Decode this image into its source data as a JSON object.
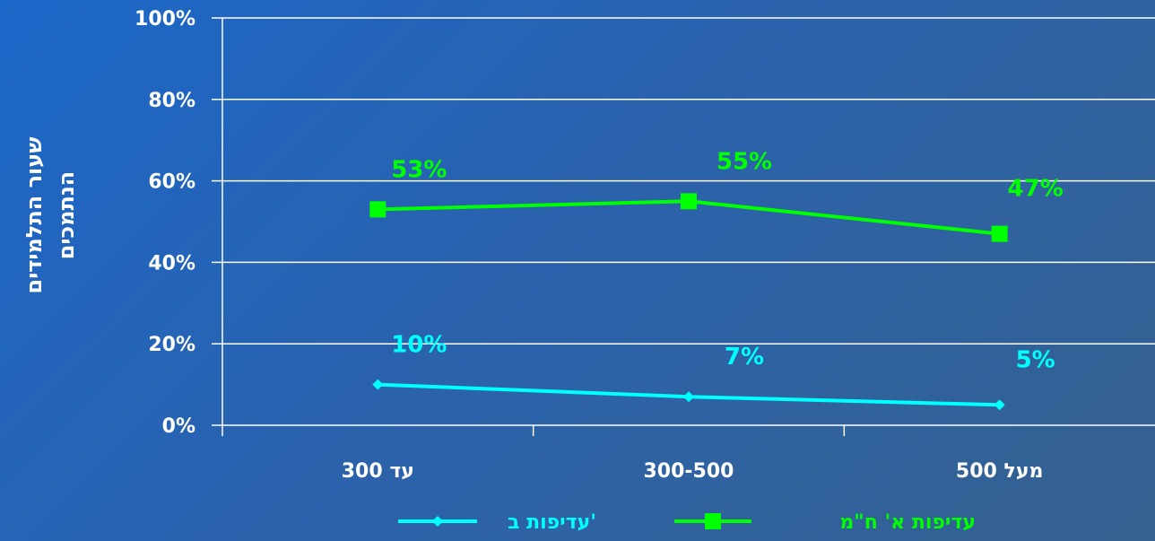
{
  "chart_data": {
    "type": "line",
    "categories": [
      "עד 300",
      "300-500",
      "מעל 500"
    ],
    "ylabel": "שעור התלמידים הנתמכים",
    "ylabel_lines": [
      "שעור התלמידים",
      "הנתמכים"
    ],
    "ylim": [
      0,
      100
    ],
    "y_ticks": [
      "0%",
      "20%",
      "40%",
      "60%",
      "80%",
      "100%"
    ],
    "grid": true,
    "legend_position": "bottom",
    "series": [
      {
        "name": "עדיפות א' ח\"מ",
        "values": [
          53,
          55,
          47
        ],
        "labels": [
          "53%",
          "55%",
          "47%"
        ],
        "color": "#00ff00",
        "marker": "square"
      },
      {
        "name": "עדיפות ב'",
        "values": [
          10,
          7,
          5
        ],
        "labels": [
          "10%",
          "7%",
          "5%"
        ],
        "color": "#00ffff",
        "marker": "diamond"
      }
    ]
  }
}
